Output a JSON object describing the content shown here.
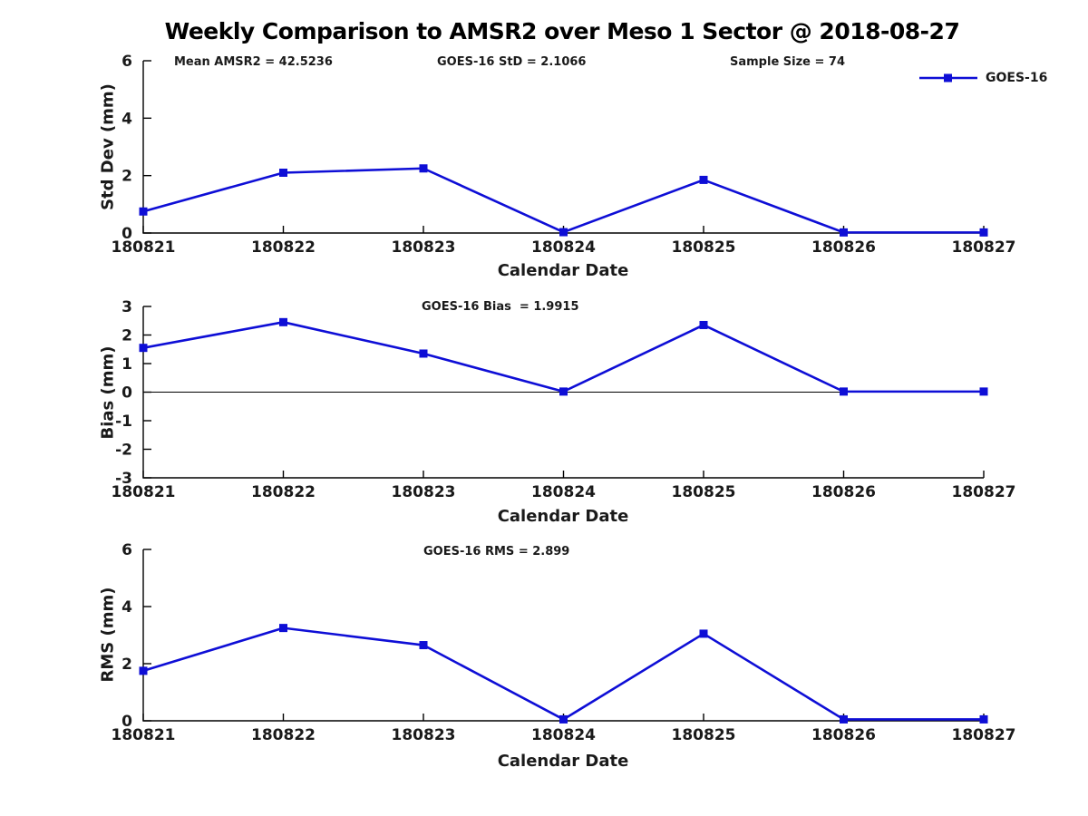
{
  "figure": {
    "title": "Weekly Comparison to AMSR2 over Meso 1 Sector @ 2018-08-27",
    "legend": {
      "label": "GOES-16",
      "marker": "square",
      "position": "top-right"
    }
  },
  "colors": {
    "series": "#0e0ed6",
    "axis": "#000000",
    "text": "#1a1a1a",
    "background": "#ffffff"
  },
  "chart_data": [
    {
      "id": "stddev",
      "type": "line",
      "categories": [
        "180821",
        "180822",
        "180823",
        "180824",
        "180825",
        "180826",
        "180827"
      ],
      "series": [
        {
          "name": "GOES-16",
          "values": [
            0.75,
            2.1,
            2.25,
            0.03,
            1.85,
            0.02,
            0.02
          ]
        }
      ],
      "xlabel": "Calendar Date",
      "ylabel": "Std Dev (mm)",
      "ylim": [
        0,
        6
      ],
      "yticks": [
        0,
        2,
        4,
        6
      ],
      "grid": false,
      "zero_line": false,
      "marker": "square",
      "annotations": [
        "Mean AMSR2 = 42.5236",
        "GOES-16 StD = 2.1066",
        "Sample Size = 74"
      ]
    },
    {
      "id": "bias",
      "type": "line",
      "categories": [
        "180821",
        "180822",
        "180823",
        "180824",
        "180825",
        "180826",
        "180827"
      ],
      "series": [
        {
          "name": "GOES-16",
          "values": [
            1.55,
            2.45,
            1.35,
            0.02,
            2.35,
            0.02,
            0.02
          ]
        }
      ],
      "xlabel": "Calendar Date",
      "ylabel": "Bias (mm)",
      "ylim": [
        -3,
        3
      ],
      "yticks": [
        -3,
        -2,
        -1,
        0,
        1,
        2,
        3
      ],
      "grid": false,
      "zero_line": true,
      "marker": "square",
      "annotations": [
        "GOES-16 Bias  = 1.9915"
      ]
    },
    {
      "id": "rms",
      "type": "line",
      "categories": [
        "180821",
        "180822",
        "180823",
        "180824",
        "180825",
        "180826",
        "180827"
      ],
      "series": [
        {
          "name": "GOES-16",
          "values": [
            1.75,
            3.25,
            2.65,
            0.05,
            3.05,
            0.05,
            0.05
          ]
        }
      ],
      "xlabel": "Calendar Date",
      "ylabel": "RMS (mm)",
      "ylim": [
        0,
        6
      ],
      "yticks": [
        0,
        2,
        4,
        6
      ],
      "grid": false,
      "zero_line": false,
      "marker": "square",
      "annotations": [
        "GOES-16 RMS = 2.899"
      ]
    }
  ]
}
